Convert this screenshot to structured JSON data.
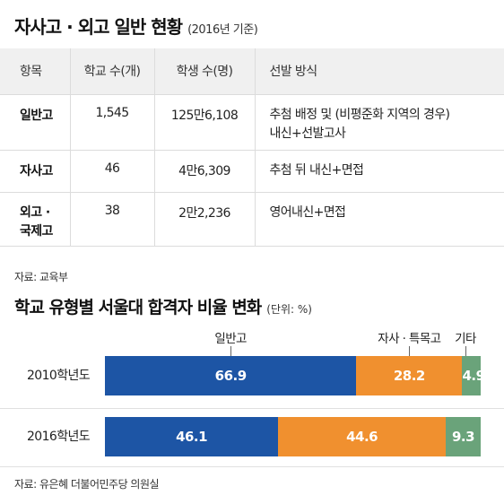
{
  "header": {
    "title": "자사고 · 외고 일반 현황",
    "subtitle": "(2016년 기준)"
  },
  "table": {
    "columns": [
      "항목",
      "학교 수(개)",
      "학생 수(명)",
      "선발 방식"
    ],
    "rows": [
      {
        "type": "일반고",
        "schools": "1,545",
        "students": "125만6,108",
        "method": [
          "추첨 배정 및 (비평준화 지역의 경우)",
          "내신+선발고사"
        ]
      },
      {
        "type": "자사고",
        "schools": "46",
        "students": "4만6,309",
        "method": [
          "추첨 뒤 내신+면접"
        ]
      },
      {
        "type": [
          "외고 ·",
          "국제고"
        ],
        "schools": "38",
        "students": "2만2,236",
        "method": [
          "영어내신+면접"
        ]
      }
    ],
    "source": "자료: 교육부"
  },
  "chart_data": {
    "type": "bar",
    "orientation": "horizontal-stacked-100",
    "title": "학교 유형별 서울대 합격자 비율 변화",
    "unit_label": "(단위: %)",
    "categories": [
      "2010학년도",
      "2016학년도"
    ],
    "series": [
      {
        "name": "일반고",
        "color": "#1d55a5",
        "values": [
          66.9,
          46.1
        ]
      },
      {
        "name": "자사 · 특목고",
        "color": "#f0902f",
        "values": [
          28.2,
          44.6
        ]
      },
      {
        "name": "기타",
        "color": "#6aa37a",
        "values": [
          4.9,
          9.3
        ]
      }
    ],
    "xlim": [
      0,
      100
    ],
    "legend": "top",
    "source": "자료: 유은혜 더불어민주당 의원실"
  }
}
